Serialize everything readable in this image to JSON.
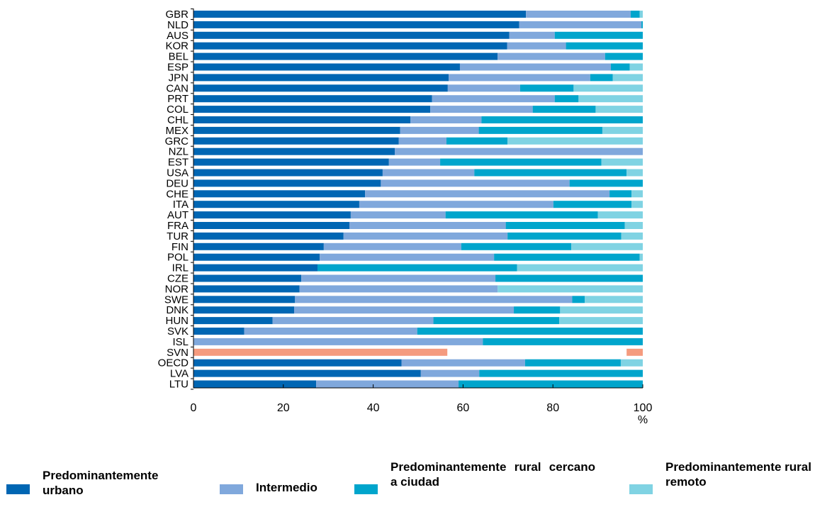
{
  "chart_data": {
    "type": "bar",
    "orientation": "horizontal",
    "stacked": true,
    "categories": [
      "GBR",
      "NLD",
      "AUS",
      "KOR",
      "BEL",
      "ESP",
      "JPN",
      "CAN",
      "PRT",
      "COL",
      "CHL",
      "MEX",
      "GRC",
      "NZL",
      "EST",
      "USA",
      "DEU",
      "CHE",
      "ITA",
      "AUT",
      "FRA",
      "TUR",
      "FIN",
      "POL",
      "IRL",
      "CZE",
      "NOR",
      "SWE",
      "DNK",
      "HUN",
      "SVK",
      "ISL",
      "SVN",
      "OECD",
      "LVA",
      "LTU"
    ],
    "series": [
      {
        "name": "Predominantemente urbano",
        "color": "#0066b3",
        "values": [
          74,
          72.5,
          70.3,
          69.8,
          67.7,
          59.3,
          56.8,
          56.6,
          53.1,
          52.7,
          48.3,
          46,
          45.7,
          44.8,
          43.5,
          42.1,
          41.7,
          38.2,
          36.9,
          35,
          34.7,
          33.4,
          29,
          28.1,
          27.6,
          24,
          23.6,
          22.6,
          22.4,
          17.6,
          11.3,
          0,
          0,
          46.3,
          50.6,
          27.3
        ]
      },
      {
        "name": "Intermedio",
        "color": "#80a8dc",
        "values": [
          23.3,
          27.2,
          10.1,
          13.1,
          23.9,
          33.6,
          31.5,
          16.1,
          27.3,
          22.8,
          15.8,
          17.5,
          10.6,
          55.2,
          11.4,
          20.4,
          42,
          54.4,
          43.2,
          21.1,
          34.8,
          36.5,
          30.6,
          38.8,
          0,
          43.2,
          44.1,
          61.7,
          48.9,
          35.8,
          38.5,
          64.4,
          0,
          27.5,
          13,
          31.7
        ]
      },
      {
        "name": "Predominantemente rural cercano a ciudad",
        "color": "#00a5cc",
        "values": [
          2,
          0.3,
          19.6,
          17.1,
          8.4,
          4.2,
          5,
          11.9,
          5.3,
          14,
          35.9,
          27.5,
          13.6,
          0,
          35.9,
          33.9,
          16.3,
          4.9,
          17.4,
          33.9,
          26.5,
          25.3,
          24.5,
          32.4,
          44.4,
          32.8,
          0,
          2.8,
          10.3,
          28,
          50.2,
          35.6,
          0,
          21.3,
          36.4,
          41
        ]
      },
      {
        "name": "Predominantemente rural remoto",
        "color": "#80d3e3",
        "values": [
          0.7,
          0,
          0,
          0,
          0,
          2.9,
          6.7,
          15.4,
          14.3,
          10.5,
          0,
          9,
          30.1,
          0,
          9.2,
          3.6,
          0,
          2.5,
          2.5,
          10,
          4,
          4.8,
          15.9,
          0.7,
          28,
          0,
          32.3,
          12.9,
          18.4,
          18.6,
          0,
          0,
          0,
          4.9,
          0,
          0
        ]
      }
    ],
    "highlight": {
      "category": "SVN",
      "color": "#f59b7e",
      "segments": [
        [
          0,
          56.5
        ],
        [
          96.4,
          100
        ]
      ]
    },
    "xlim": [
      0,
      100
    ],
    "xticks": [
      "0",
      "20",
      "40",
      "60",
      "80",
      "100"
    ],
    "xunit": "%",
    "legend_position": "bottom",
    "grid": false
  },
  "legend_items": [
    {
      "label": "Predominantemente urbano",
      "color": "#0066b3"
    },
    {
      "label": "Intermedio",
      "color": "#80a8dc"
    },
    {
      "label": "Predominantemente rural cercano a ciudad",
      "color": "#00a5cc"
    },
    {
      "label": "Predominantemente rural remoto",
      "color": "#80d3e3"
    }
  ]
}
